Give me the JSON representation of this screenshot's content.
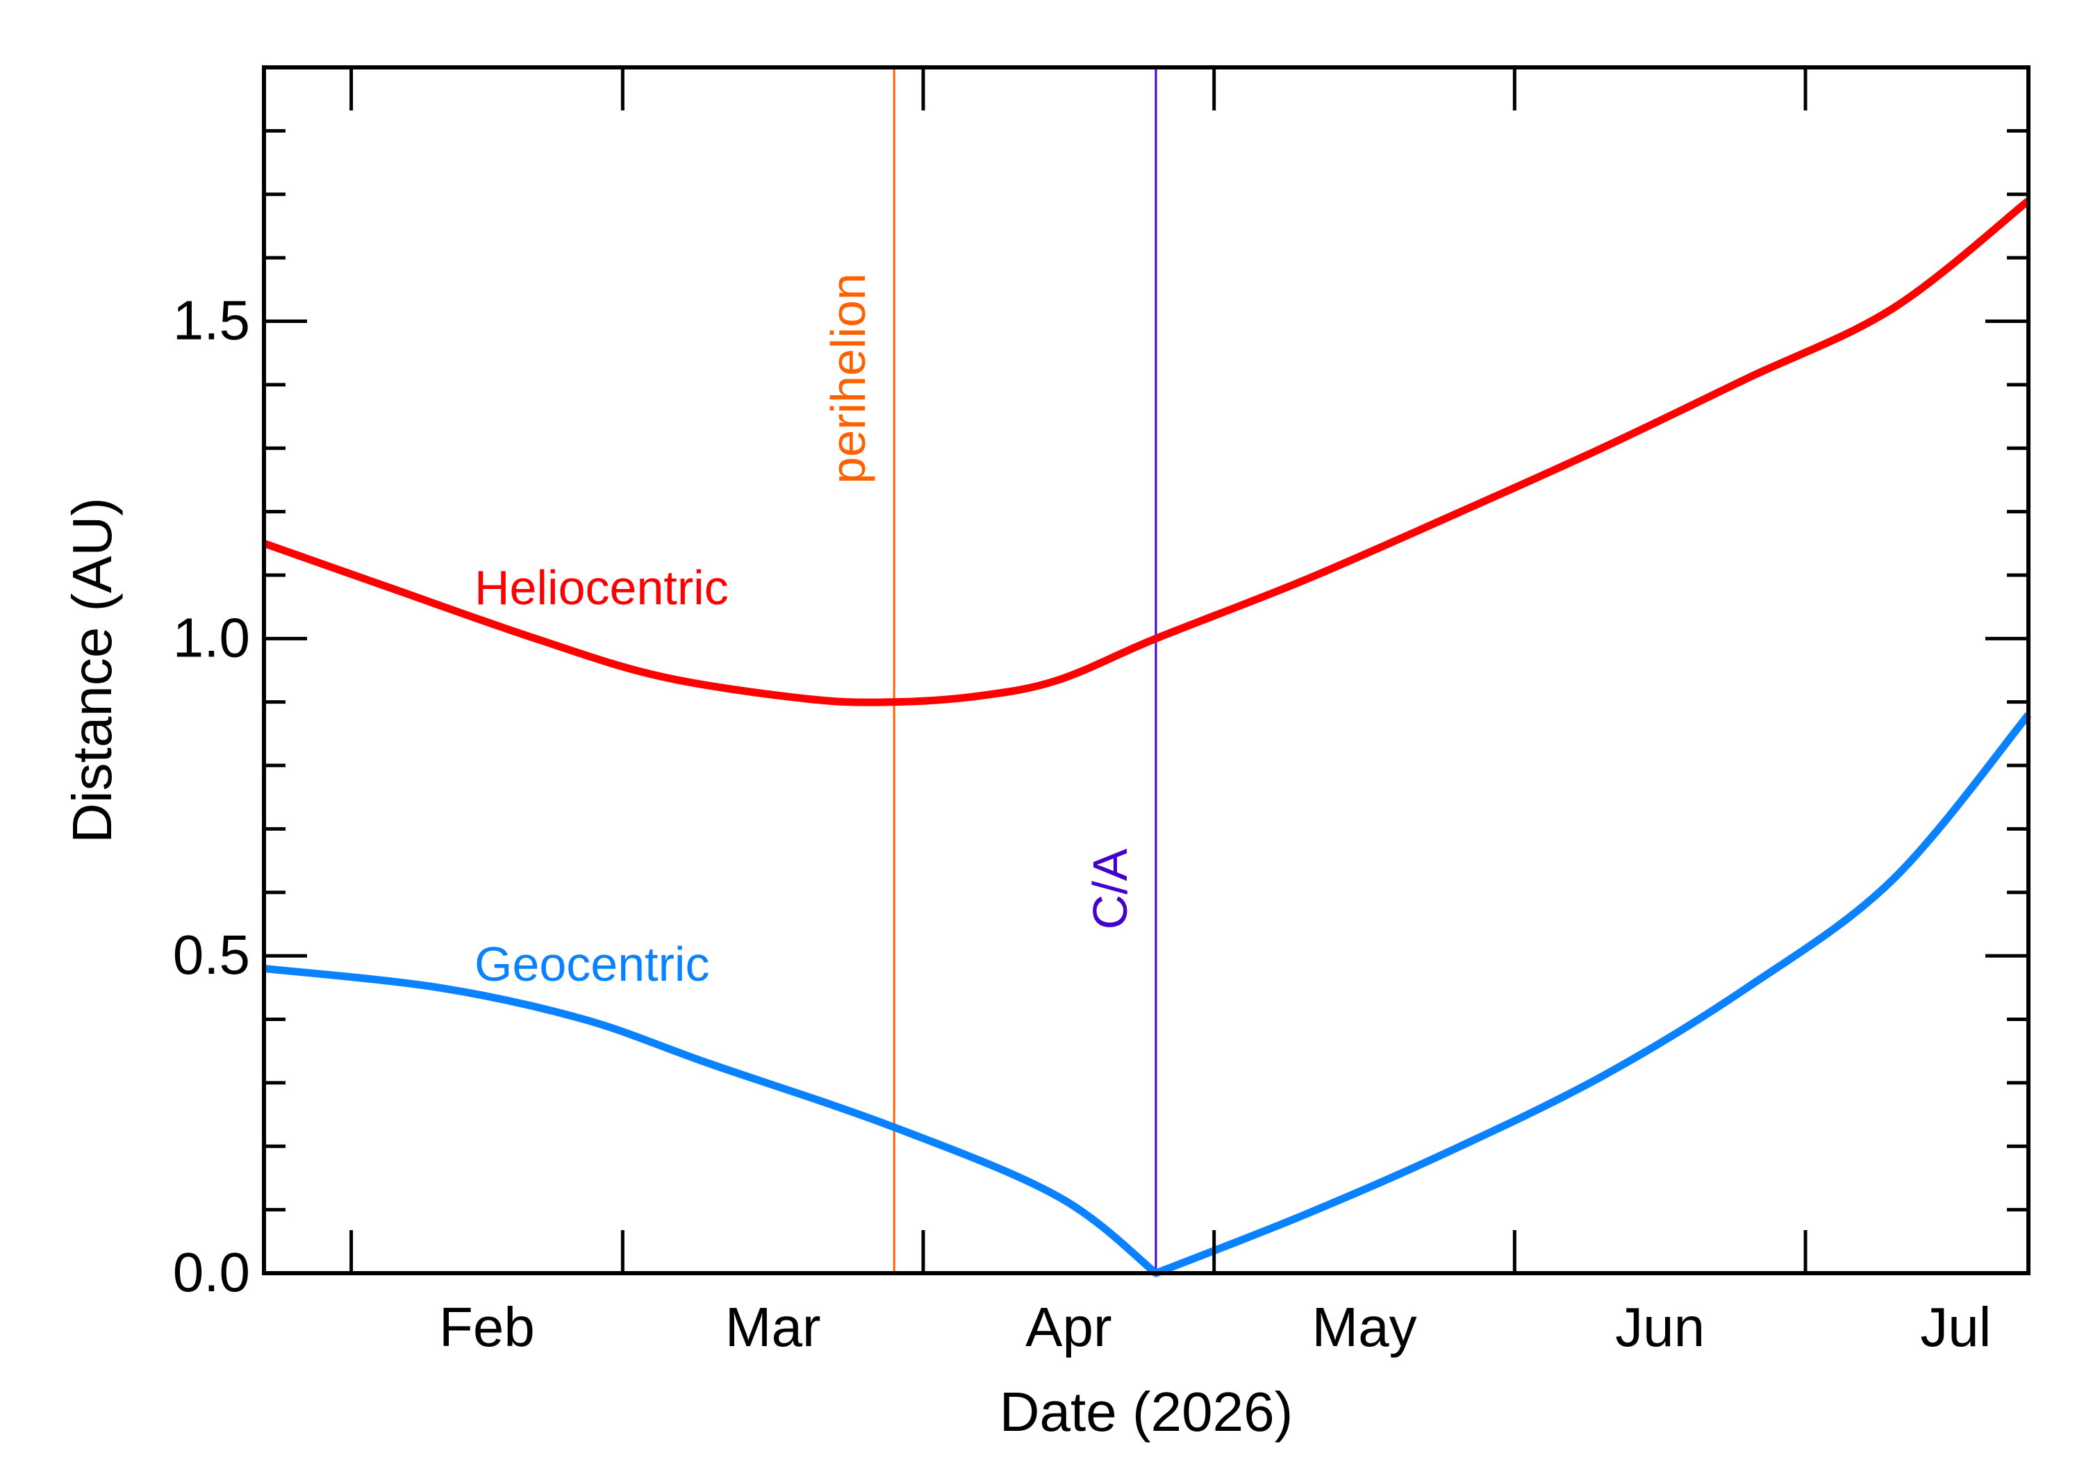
{
  "chart_data": {
    "type": "line",
    "title": "",
    "xlabel": "Date (2026)",
    "ylabel": "Distance (AU)",
    "xlim": [
      "2026-01-23",
      "2026-07-24"
    ],
    "ylim": [
      0,
      1.9
    ],
    "x_ticks": [
      {
        "label": "Feb",
        "date": "2026-02-01"
      },
      {
        "label": "Mar",
        "date": "2026-03-01"
      },
      {
        "label": "Apr",
        "date": "2026-04-01"
      },
      {
        "label": "May",
        "date": "2026-05-01"
      },
      {
        "label": "Jun",
        "date": "2026-06-01"
      },
      {
        "label": "Jul",
        "date": "2026-07-01"
      }
    ],
    "y_ticks": [
      0.0,
      0.5,
      1.0,
      1.5
    ],
    "y_tick_labels": [
      "0.0",
      "0.5",
      "1.0",
      "1.5"
    ],
    "series": [
      {
        "name": "Heliocentric",
        "color": "#ff0000",
        "x": [
          "2026-01-23",
          "2026-02-05",
          "2026-02-20",
          "2026-03-05",
          "2026-03-20",
          "2026-03-29",
          "2026-04-07",
          "2026-04-15",
          "2026-04-25",
          "2026-05-10",
          "2026-05-25",
          "2026-06-10",
          "2026-06-25",
          "2026-07-10",
          "2026-07-24"
        ],
        "values": [
          1.15,
          1.08,
          1.0,
          0.94,
          0.905,
          0.9,
          0.91,
          0.935,
          1.0,
          1.09,
          1.19,
          1.3,
          1.41,
          1.52,
          1.69
        ]
      },
      {
        "name": "Geocentric",
        "color": "#0a82ff",
        "x": [
          "2026-01-23",
          "2026-02-10",
          "2026-02-25",
          "2026-03-10",
          "2026-03-29",
          "2026-04-15",
          "2026-04-25",
          "2026-05-10",
          "2026-05-25",
          "2026-06-10",
          "2026-06-25",
          "2026-07-10",
          "2026-07-24"
        ],
        "values": [
          0.48,
          0.45,
          0.4,
          0.33,
          0.23,
          0.12,
          0.0,
          0.09,
          0.19,
          0.31,
          0.45,
          0.62,
          0.88
        ]
      }
    ],
    "vlines": [
      {
        "label": "perihelion",
        "date": "2026-03-29",
        "color": "#ff6000"
      },
      {
        "label": "C/A",
        "date": "2026-04-25",
        "color": "#4400cc"
      }
    ]
  }
}
